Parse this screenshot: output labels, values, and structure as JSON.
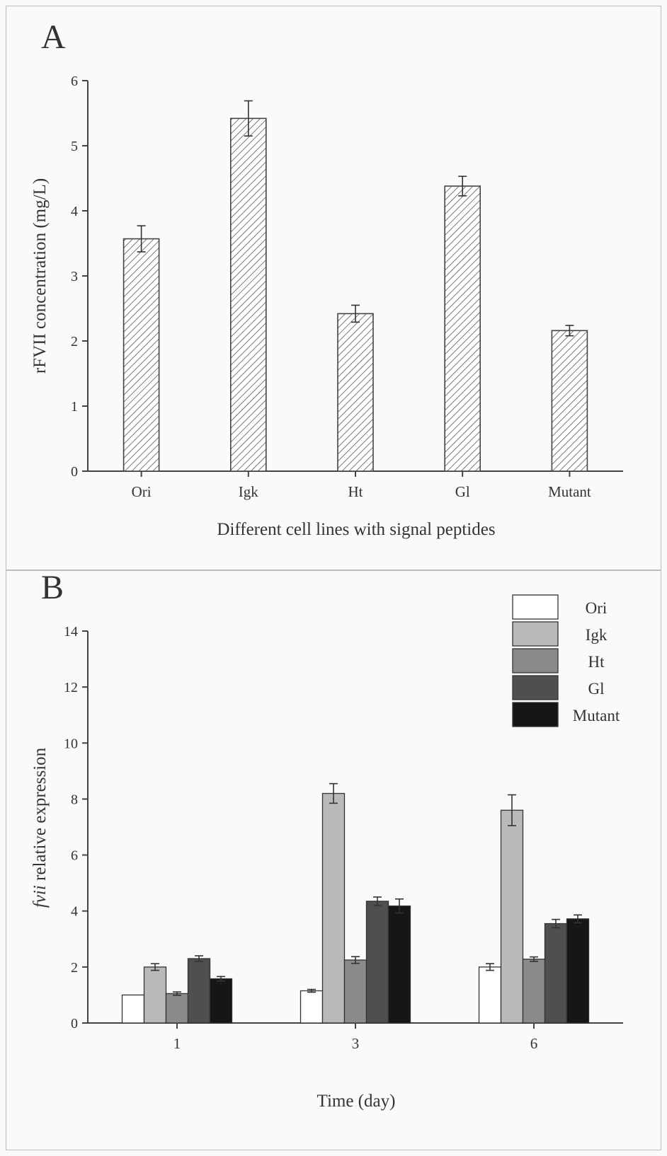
{
  "chart_data": [
    {
      "panel_label": "A",
      "type": "bar",
      "xlabel": "Different cell lines with signal peptides",
      "ylabel": "rFVII concentration (mg/L)",
      "ylim": [
        0,
        6
      ],
      "yticks": [
        "0",
        "1",
        "2",
        "3",
        "4",
        "5",
        "6"
      ],
      "categories": [
        "Ori",
        "Igk",
        "Ht",
        "Gl",
        "Mutant"
      ],
      "values": [
        3.57,
        5.42,
        2.42,
        4.38,
        2.16
      ],
      "errors": [
        0.2,
        0.27,
        0.13,
        0.15,
        0.08
      ],
      "bar_fill": "hatched",
      "colors": {
        "bar_stroke": "#444444",
        "hatch": "#555555"
      }
    },
    {
      "panel_label": "B",
      "type": "bar",
      "xlabel": "Time (day)",
      "ylabel_italic": "fvii",
      "ylabel_rest": " relative expression",
      "ylim": [
        0,
        14
      ],
      "yticks": [
        "0",
        "2",
        "4",
        "6",
        "8",
        "10",
        "12",
        "14"
      ],
      "categories": [
        "1",
        "3",
        "6"
      ],
      "legend_position": "top-right",
      "series": [
        {
          "name": "Ori",
          "color": "#ffffff",
          "values": [
            1.0,
            1.15,
            2.0
          ],
          "errors": [
            0.0,
            0.05,
            0.12
          ]
        },
        {
          "name": "Igk",
          "color": "#b9b9b9",
          "values": [
            2.0,
            8.2,
            7.6
          ],
          "errors": [
            0.12,
            0.35,
            0.55
          ]
        },
        {
          "name": "Ht",
          "color": "#8a8a8a",
          "values": [
            1.05,
            2.25,
            2.28
          ],
          "errors": [
            0.06,
            0.12,
            0.08
          ]
        },
        {
          "name": "Gl",
          "color": "#4f4f4f",
          "values": [
            2.3,
            4.35,
            3.55
          ],
          "errors": [
            0.1,
            0.15,
            0.15
          ]
        },
        {
          "name": "Mutant",
          "color": "#161616",
          "values": [
            1.58,
            4.18,
            3.72
          ],
          "errors": [
            0.08,
            0.25,
            0.14
          ]
        }
      ]
    }
  ]
}
